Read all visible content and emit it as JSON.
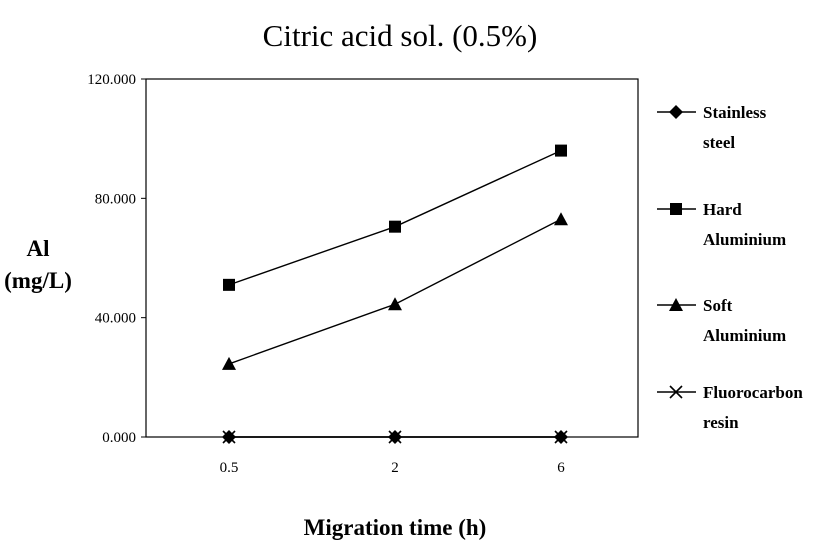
{
  "chart_data": {
    "type": "line",
    "title": "Citric acid sol. (0.5%)",
    "ylabel_lines": [
      "Al",
      "(mg/L)"
    ],
    "xlabel": "Migration time (h)",
    "categories": [
      "0.5",
      "2",
      "6"
    ],
    "ylim": [
      0,
      120
    ],
    "yticks": [
      "0.000",
      "40.000",
      "80.000",
      "120.000"
    ],
    "ytick_values": [
      0,
      40,
      80,
      120
    ],
    "grid": false,
    "legend_position": "right",
    "series": [
      {
        "name_lines": [
          "Stainless",
          "steel"
        ],
        "marker": "diamond",
        "values": [
          0,
          0,
          0
        ]
      },
      {
        "name_lines": [
          "Hard",
          "Aluminium"
        ],
        "marker": "square",
        "values": [
          51,
          70.5,
          96
        ]
      },
      {
        "name_lines": [
          "Soft",
          "Aluminium"
        ],
        "marker": "triangle",
        "values": [
          24.5,
          44.5,
          73
        ]
      },
      {
        "name_lines": [
          "Fluorocarbon",
          "resin"
        ],
        "marker": "x",
        "values": [
          0,
          0,
          0
        ]
      }
    ],
    "colors": {
      "line": "#000000",
      "background": "#ffffff"
    }
  }
}
